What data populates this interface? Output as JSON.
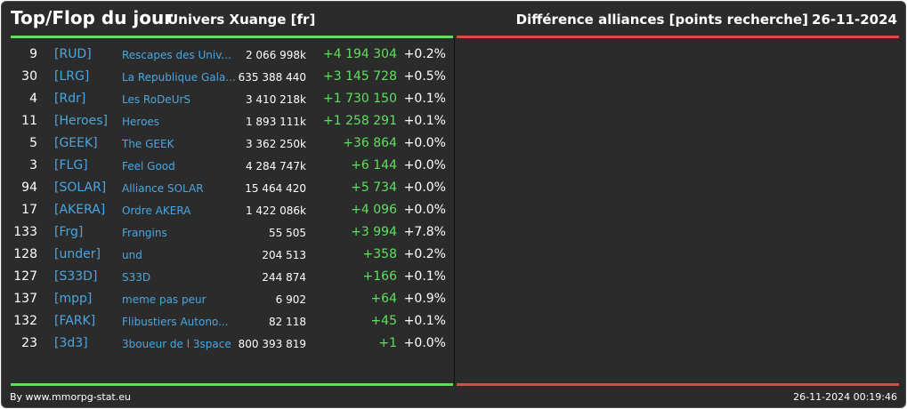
{
  "header": {
    "title": "Top/Flop du jour",
    "subtitle": "Univers Xuange [fr]",
    "right_title": "Différence alliances [points recherche]",
    "date": "26-11-2024"
  },
  "rows": [
    {
      "rank": "9",
      "tag": "[RUD]",
      "name": "Rescapes des Univ...",
      "points": "2 066 998k",
      "diff": "+4 194 304",
      "pct": "+0.2%"
    },
    {
      "rank": "30",
      "tag": "[LRG]",
      "name": "La Republique Gala...",
      "points": "635 388 440",
      "diff": "+3 145 728",
      "pct": "+0.5%"
    },
    {
      "rank": "4",
      "tag": "[Rdr]",
      "name": "Les RoDeUrS",
      "points": "3 410 218k",
      "diff": "+1 730 150",
      "pct": "+0.1%"
    },
    {
      "rank": "11",
      "tag": "[Heroes]",
      "name": "Heroes",
      "points": "1 893 111k",
      "diff": "+1 258 291",
      "pct": "+0.1%"
    },
    {
      "rank": "5",
      "tag": "[GEEK]",
      "name": "The GEEK",
      "points": "3 362 250k",
      "diff": "+36 864",
      "pct": "+0.0%"
    },
    {
      "rank": "3",
      "tag": "[FLG]",
      "name": "Feel Good",
      "points": "4 284 747k",
      "diff": "+6 144",
      "pct": "+0.0%"
    },
    {
      "rank": "94",
      "tag": "[SOLAR]",
      "name": "Alliance SOLAR",
      "points": "15 464 420",
      "diff": "+5 734",
      "pct": "+0.0%"
    },
    {
      "rank": "17",
      "tag": "[AKERA]",
      "name": "Ordre AKERA",
      "points": "1 422 086k",
      "diff": "+4 096",
      "pct": "+0.0%"
    },
    {
      "rank": "133",
      "tag": "[Frg]",
      "name": "Frangins",
      "points": "55 505",
      "diff": "+3 994",
      "pct": "+7.8%"
    },
    {
      "rank": "128",
      "tag": "[under]",
      "name": "und",
      "points": "204 513",
      "diff": "+358",
      "pct": "+0.2%"
    },
    {
      "rank": "127",
      "tag": "[S33D]",
      "name": "S33D",
      "points": "244 874",
      "diff": "+166",
      "pct": "+0.1%"
    },
    {
      "rank": "137",
      "tag": "[mpp]",
      "name": "meme pas peur",
      "points": "6 902",
      "diff": "+64",
      "pct": "+0.9%"
    },
    {
      "rank": "132",
      "tag": "[FARK]",
      "name": "Flibustiers Autono...",
      "points": "82 118",
      "diff": "+45",
      "pct": "+0.1%"
    },
    {
      "rank": "23",
      "tag": "[3d3]",
      "name": "3boueur de l 3space",
      "points": "800 393 819",
      "diff": "+1",
      "pct": "+0.0%"
    }
  ],
  "footer": {
    "credit": "By www.mmorpg-stat.eu",
    "timestamp": "26-11-2024 00:19:46"
  },
  "colors": {
    "background": "#2b2b2b",
    "top_accent": "#5ee05e",
    "flop_accent": "#e04848",
    "link": "#4aa6e0"
  }
}
